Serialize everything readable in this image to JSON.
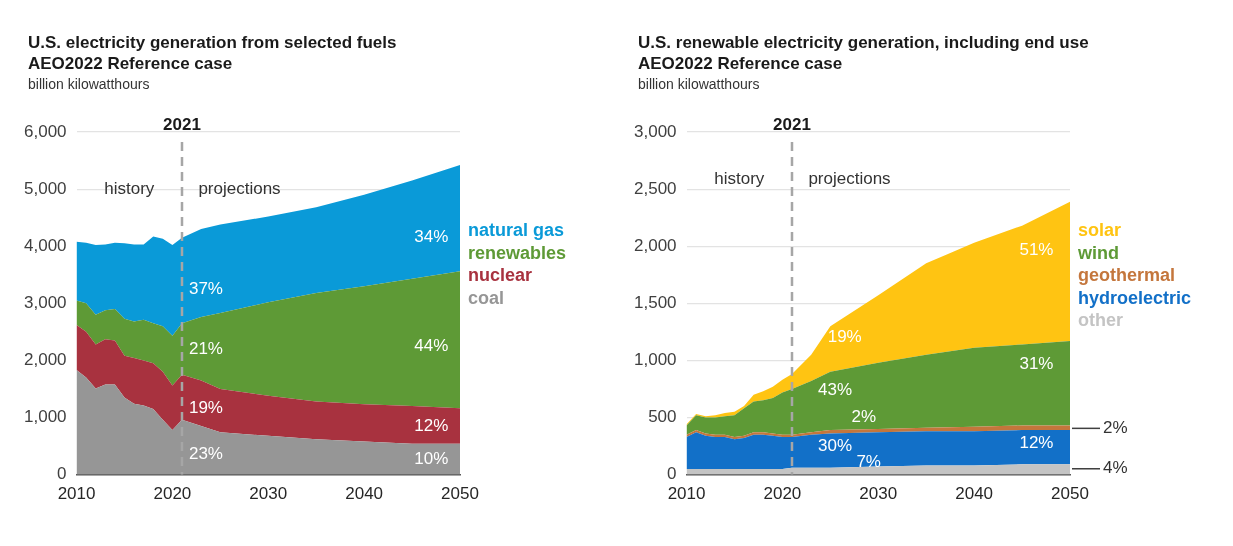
{
  "chart_data": [
    {
      "type": "area",
      "title": "U.S. electricity generation from selected fuels",
      "subtitle": "AEO2022 Reference case",
      "ylabel": "billion kilowatthours",
      "stacked": true,
      "grid": "y",
      "legend": "right",
      "x": [
        2010,
        2011,
        2012,
        2013,
        2014,
        2015,
        2016,
        2017,
        2018,
        2019,
        2020,
        2021,
        2023,
        2025,
        2030,
        2035,
        2040,
        2045,
        2050
      ],
      "xlim": [
        2010,
        2050
      ],
      "xticks": [
        2010,
        2020,
        2030,
        2040,
        2050
      ],
      "ylim": [
        0,
        6000
      ],
      "yticks": [
        {
          "value": 0,
          "label": "0"
        },
        {
          "value": 1000,
          "label": "1,000"
        },
        {
          "value": 2000,
          "label": "2,000"
        },
        {
          "value": 3000,
          "label": "3,000"
        },
        {
          "value": 4000,
          "label": "4,000"
        },
        {
          "value": 5000,
          "label": "5,000"
        },
        {
          "value": 6000,
          "label": "6,000"
        }
      ],
      "series": [
        {
          "name": "coal",
          "color": "#969696",
          "values": [
            1830,
            1700,
            1510,
            1580,
            1580,
            1350,
            1240,
            1210,
            1150,
            960,
            780,
            960,
            850,
            740,
            680,
            620,
            580,
            540,
            540
          ]
        },
        {
          "name": "nuclear",
          "color": "#a8323f",
          "values": [
            790,
            800,
            770,
            790,
            770,
            730,
            800,
            790,
            800,
            840,
            780,
            790,
            800,
            760,
            700,
            660,
            650,
            660,
            620
          ]
        },
        {
          "name": "renewables",
          "color": "#5e9a36",
          "values": [
            430,
            500,
            520,
            510,
            550,
            650,
            640,
            710,
            700,
            800,
            870,
            900,
            1110,
            1330,
            1640,
            1900,
            2070,
            2230,
            2400
          ]
        },
        {
          "name": "natural gas",
          "color": "#0a9ad8",
          "values": [
            1030,
            1060,
            1220,
            1150,
            1160,
            1320,
            1350,
            1320,
            1520,
            1530,
            1590,
            1500,
            1540,
            1550,
            1500,
            1500,
            1600,
            1720,
            1860
          ]
        }
      ],
      "ref_lines": [
        {
          "axis": "x",
          "value": 2021,
          "label": "2021",
          "color": "#a6a6a6",
          "line_style": "dashed"
        }
      ],
      "annotations": [
        "history",
        "projections",
        "37%",
        "21%",
        "19%",
        "23%",
        "34%",
        "44%",
        "12%",
        "10%"
      ]
    },
    {
      "type": "area",
      "title": "U.S. renewable electricity generation, including end use",
      "subtitle": "AEO2022 Reference case",
      "ylabel": "billion kilowatthours",
      "stacked": true,
      "grid": "y",
      "legend": "right",
      "x": [
        2010,
        2011,
        2012,
        2013,
        2014,
        2015,
        2016,
        2017,
        2018,
        2019,
        2020,
        2021,
        2023,
        2025,
        2030,
        2035,
        2040,
        2045,
        2050
      ],
      "xlim": [
        2010,
        2050
      ],
      "xticks": [
        2010,
        2020,
        2030,
        2040,
        2050
      ],
      "ylim": [
        0,
        3000
      ],
      "yticks": [
        {
          "value": 0,
          "label": "0"
        },
        500,
        {
          "value": 1000,
          "label": "1,000"
        },
        {
          "value": 1500,
          "label": "1,500"
        },
        {
          "value": 2000,
          "label": "2,000"
        },
        {
          "value": 2500,
          "label": "2,500"
        },
        {
          "value": 3000,
          "label": "3,000"
        }
      ],
      "series": [
        {
          "name": "other",
          "color": "#c4c4c4",
          "values": [
            50,
            50,
            50,
            50,
            50,
            50,
            50,
            50,
            50,
            50,
            50,
            60,
            60,
            60,
            70,
            80,
            80,
            90,
            90
          ]
        },
        {
          "name": "hydroelectric",
          "color": "#1270c8",
          "values": [
            280,
            320,
            290,
            280,
            280,
            260,
            270,
            300,
            300,
            290,
            280,
            270,
            290,
            300,
            300,
            300,
            300,
            300,
            300
          ]
        },
        {
          "name": "geothermal",
          "color": "#c4763c",
          "values": [
            20,
            20,
            20,
            20,
            20,
            20,
            20,
            20,
            20,
            20,
            20,
            20,
            20,
            30,
            30,
            30,
            40,
            40,
            40
          ]
        },
        {
          "name": "wind",
          "color": "#5e9a36",
          "values": [
            80,
            130,
            140,
            150,
            160,
            190,
            240,
            270,
            280,
            310,
            370,
            400,
            450,
            510,
            580,
            640,
            690,
            710,
            740
          ]
        },
        {
          "name": "solar",
          "color": "#ffc412",
          "values": [
            10,
            10,
            10,
            20,
            30,
            30,
            20,
            60,
            80,
            100,
            110,
            130,
            230,
            400,
            590,
            800,
            920,
            1040,
            1220
          ]
        }
      ],
      "ref_lines": [
        {
          "axis": "x",
          "value": 2021,
          "label": "2021",
          "color": "#a6a6a6",
          "line_style": "dashed"
        }
      ],
      "annotations": [
        "history",
        "projections",
        "19%",
        "43%",
        "2%",
        "30%",
        "7%",
        "51%",
        "31%",
        "12%",
        "2%",
        "4%"
      ]
    }
  ]
}
